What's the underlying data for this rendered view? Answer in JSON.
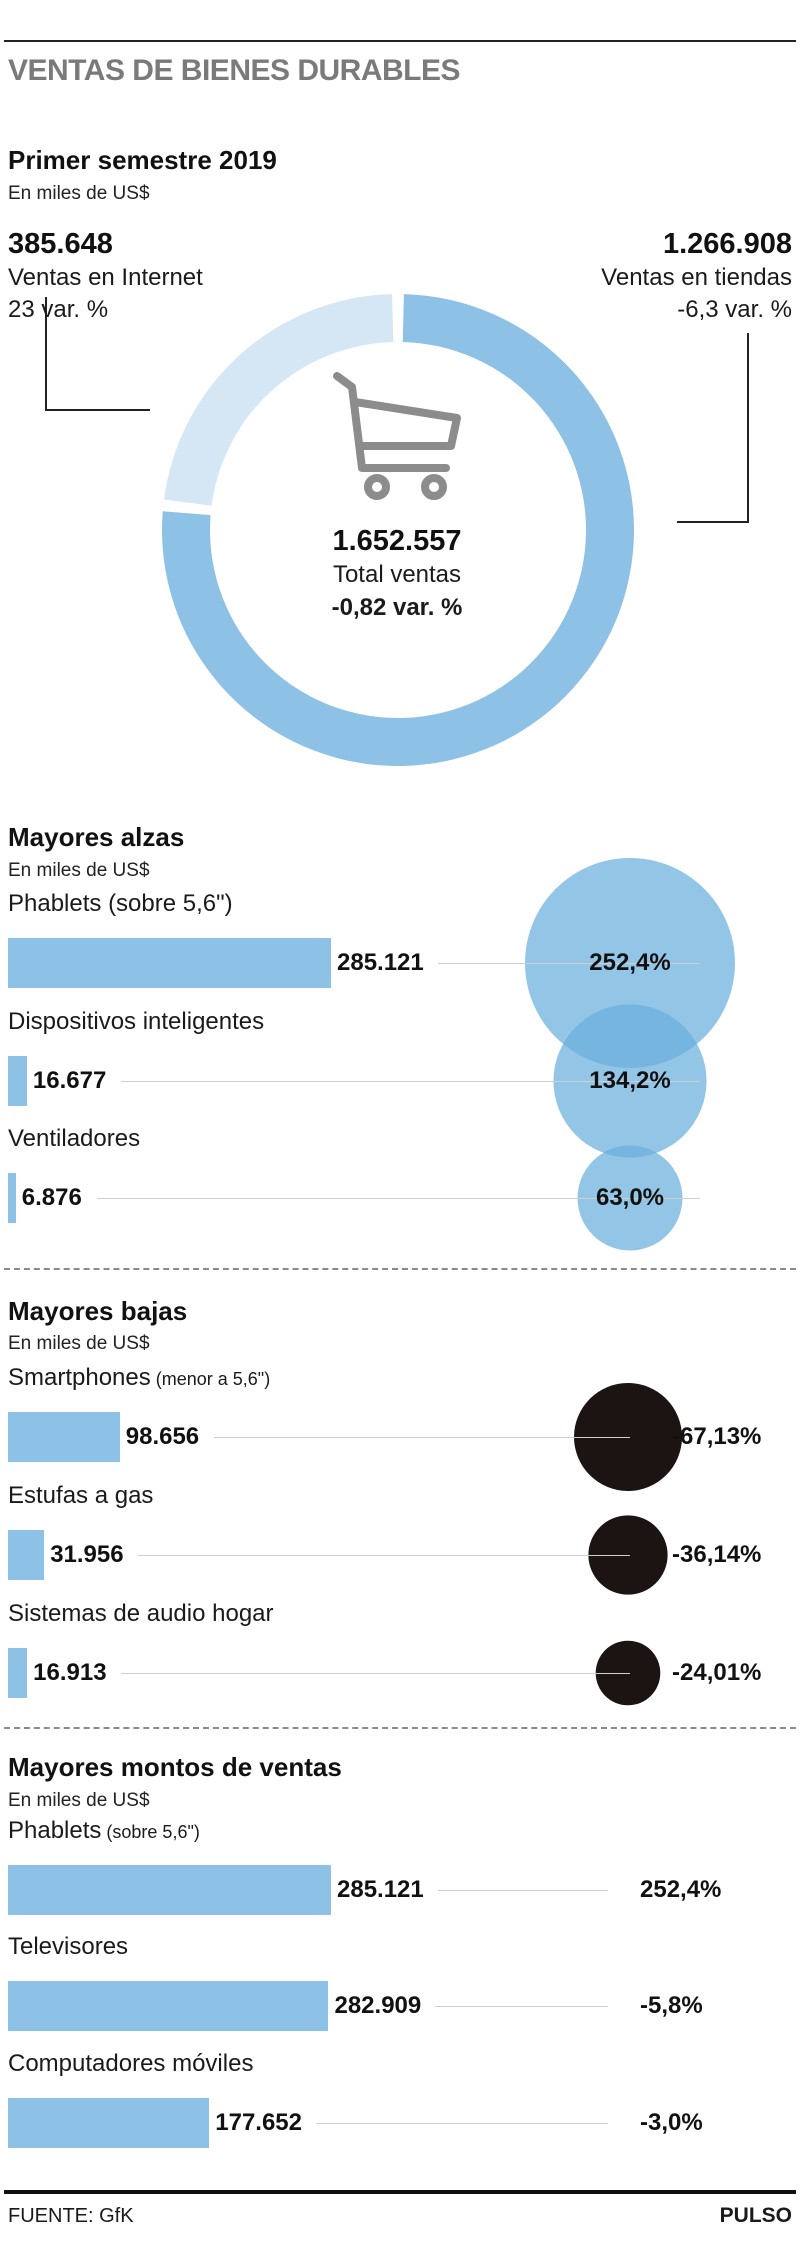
{
  "title": "VENTAS DE BIENES DURABLES",
  "colors": {
    "bar": "#8ec1e6",
    "donut_main": "#8ec1e6",
    "donut_light": "#d5e7f5",
    "bubble_up": "#6aaedc",
    "bubble_down": "#1c1413"
  },
  "semester": {
    "title": "Primer semestre 2019",
    "unit": "En miles de US$",
    "internet": {
      "value": "385.648",
      "label": "Ventas en Internet",
      "var": "23 var. %"
    },
    "stores": {
      "value": "1.266.908",
      "label": "Ventas en tiendas",
      "var": "-6,3 var. %"
    },
    "total": {
      "value": "1.652.557",
      "label": "Total ventas",
      "var": "-0,82 var. %"
    },
    "icon": "shopping-cart-icon"
  },
  "alzas": {
    "title": "Mayores alzas",
    "unit": "En miles de US$",
    "items": [
      {
        "label": "Phablets (sobre 5,6\")",
        "value_text": "285.121",
        "pct_text": "252,4%"
      },
      {
        "label": "Dispositivos inteligentes",
        "value_text": "16.677",
        "pct_text": "134,2%"
      },
      {
        "label": "Ventiladores",
        "value_text": "6.876",
        "pct_text": "63,0%"
      }
    ]
  },
  "bajas": {
    "title": "Mayores bajas",
    "unit": "En miles de US$",
    "items": [
      {
        "label": "Smartphones",
        "label_small": "(menor a 5,6\")",
        "value_text": "98.656",
        "pct_text": "-67,13%"
      },
      {
        "label": "Estufas a gas",
        "label_small": "",
        "value_text": "31.956",
        "pct_text": "-36,14%"
      },
      {
        "label": "Sistemas de audio hogar",
        "label_small": "",
        "value_text": "16.913",
        "pct_text": "-24,01%"
      }
    ]
  },
  "montos": {
    "title": "Mayores montos de ventas",
    "unit": "En miles de US$",
    "items": [
      {
        "label": "Phablets",
        "label_small": "(sobre 5,6\")",
        "value_text": "285.121",
        "pct_text": "252,4%"
      },
      {
        "label": "Televisores",
        "label_small": "",
        "value_text": "282.909",
        "pct_text": "-5,8%"
      },
      {
        "label": "Computadores móviles",
        "label_small": "",
        "value_text": "177.652",
        "pct_text": "-3,0%"
      }
    ]
  },
  "footer": {
    "source": "FUENTE: GfK",
    "brand": "PULSO"
  },
  "chart_data": [
    {
      "type": "pie",
      "title": "Primer semestre 2019",
      "unit": "En miles de US$",
      "categories": [
        "Ventas en Internet",
        "Ventas en tiendas"
      ],
      "values": [
        385648,
        1266908
      ],
      "total": 1652557,
      "var_pct": [
        23,
        -6.3
      ],
      "total_var_pct": -0.82
    },
    {
      "type": "bar",
      "title": "Mayores alzas",
      "unit": "En miles de US$",
      "categories": [
        "Phablets (sobre 5,6\")",
        "Dispositivos inteligentes",
        "Ventiladores"
      ],
      "values": [
        285121,
        16677,
        6876
      ],
      "var_pct": [
        252.4,
        134.2,
        63.0
      ]
    },
    {
      "type": "bar",
      "title": "Mayores bajas",
      "unit": "En miles de US$",
      "categories": [
        "Smartphones (menor a 5,6\")",
        "Estufas a gas",
        "Sistemas de audio hogar"
      ],
      "values": [
        98656,
        31956,
        16913
      ],
      "var_pct": [
        -67.13,
        -36.14,
        -24.01
      ]
    },
    {
      "type": "bar",
      "title": "Mayores montos de ventas",
      "unit": "En miles de US$",
      "categories": [
        "Phablets (sobre 5,6\")",
        "Televisores",
        "Computadores móviles"
      ],
      "values": [
        285121,
        282909,
        177652
      ],
      "var_pct": [
        252.4,
        -5.8,
        -3.0
      ]
    }
  ]
}
